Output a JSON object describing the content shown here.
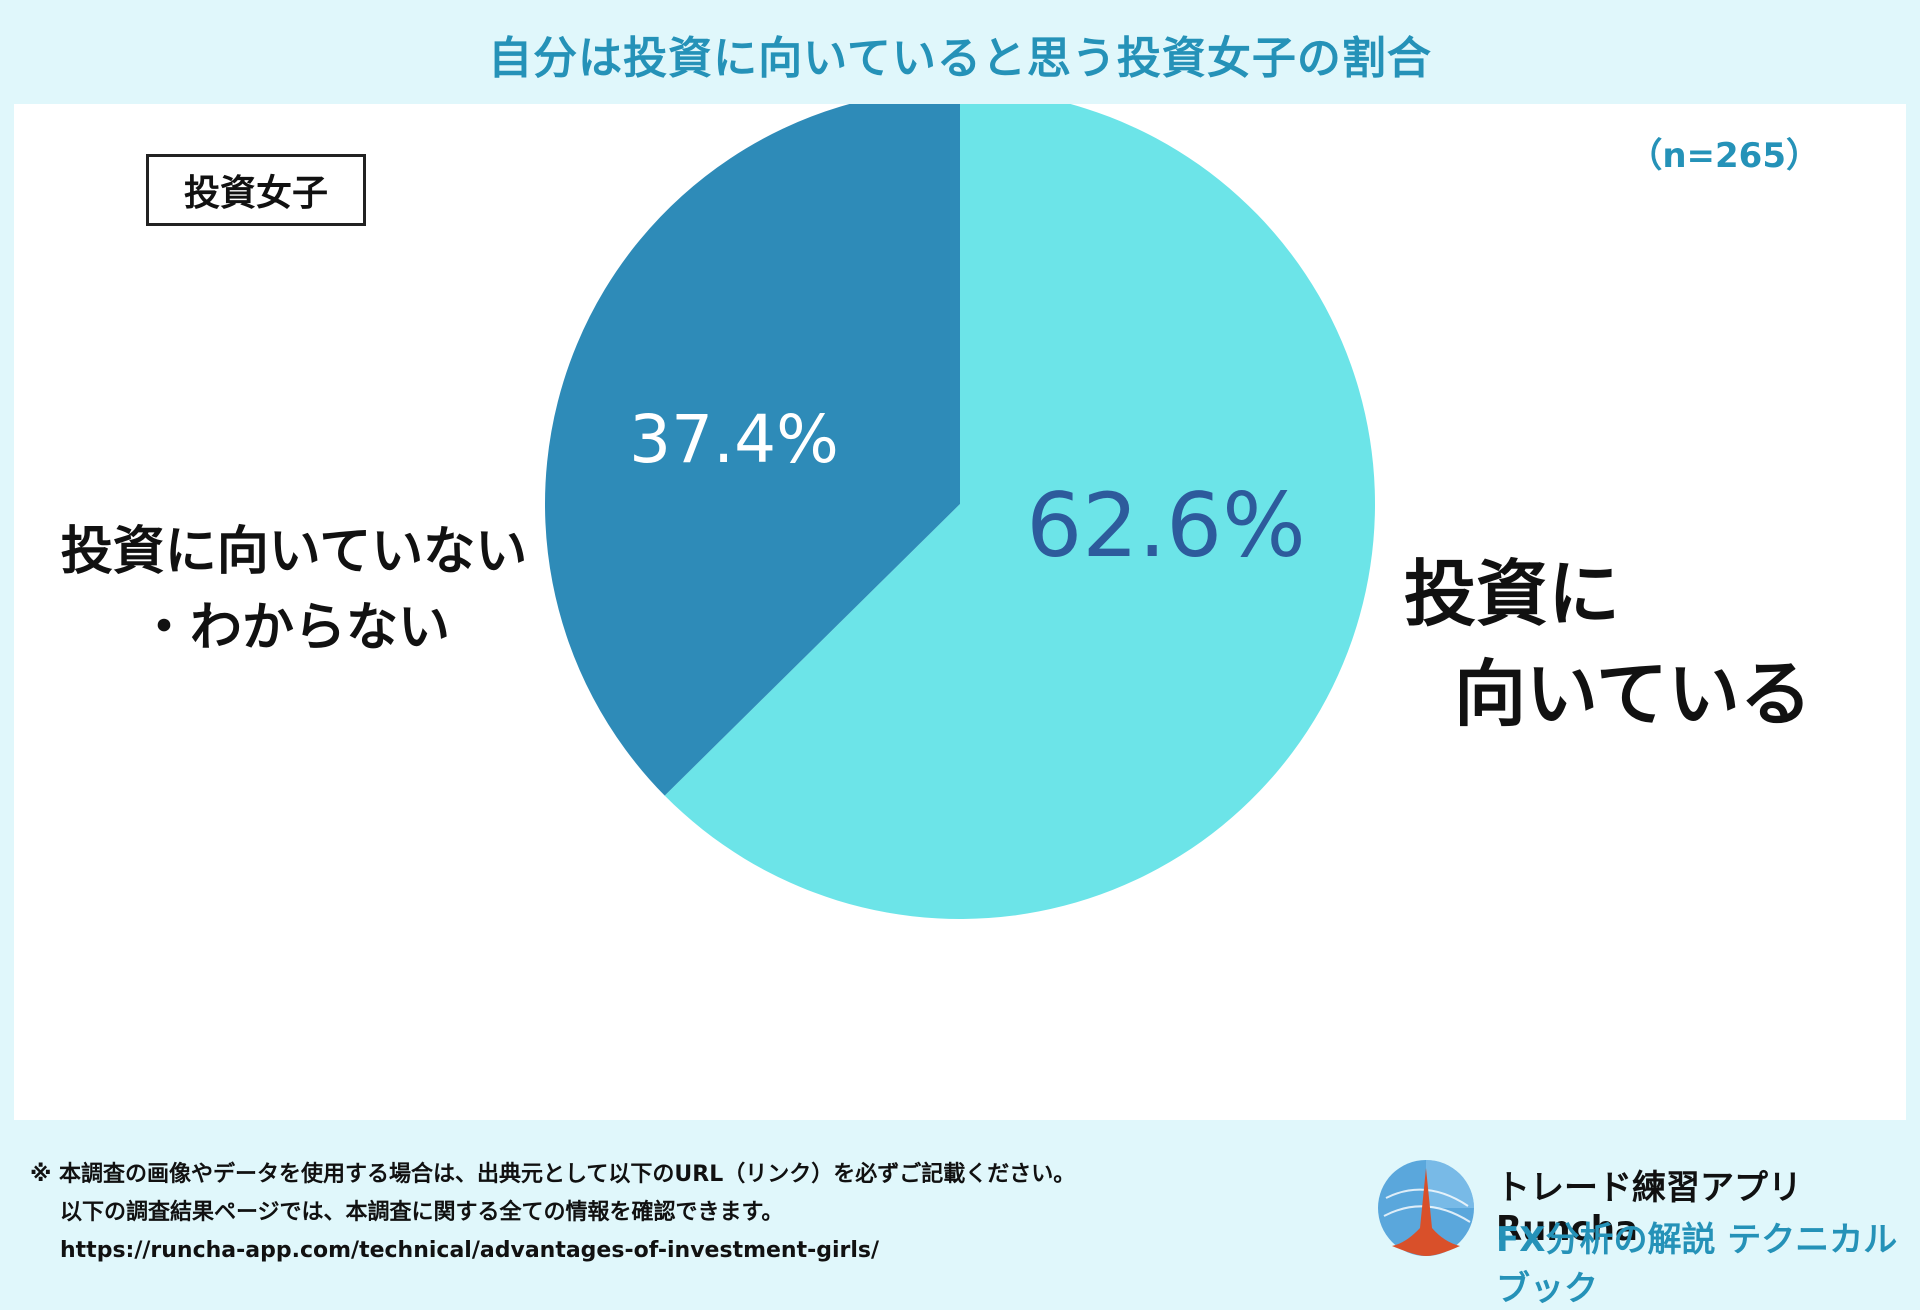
{
  "title": "自分は投資に向いていると思う投資女子の割合",
  "group_label": "投資女子",
  "sample_size": "（n=265）",
  "chart_data": {
    "type": "pie",
    "title": "自分は投資に向いていると思う投資女子の割合",
    "slices": [
      {
        "label": "投資に向いている",
        "label_lines": [
          "投資に",
          "向いている"
        ],
        "value": 62.6,
        "value_label": "62.6%",
        "color": "#6ce4e8",
        "text_color": "#2d5b9c"
      },
      {
        "label": "投資に向いていない・わからない",
        "label_lines": [
          "投資に向いていない",
          "・わからない"
        ],
        "value": 37.4,
        "value_label": "37.4%",
        "color": "#2e8bb8",
        "text_color": "#ffffff"
      }
    ],
    "start": "12 o'clock, clockwise"
  },
  "footer": {
    "line1": "※ 本調査の画像やデータを使用する場合は、出典元として以下のURL（リンク）を必ずご記載ください。",
    "line2": "以下の調査結果ページでは、本調査に関する全ての情報を確認できます。",
    "url": "https://runcha-app.com/technical/advantages-of-investment-girls/"
  },
  "brand": {
    "name": "トレード練習アプリ Runcha",
    "tagline": "FX分析の解説 テクニカルブック",
    "logo_icon": "runcha-logo-icon"
  },
  "colors": {
    "accent": "#2592b8",
    "background": "#e0f7fb"
  }
}
